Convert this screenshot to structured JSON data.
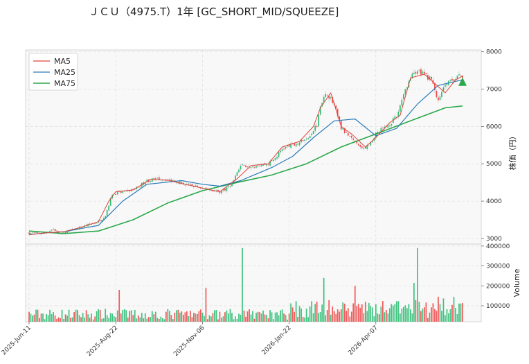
{
  "chart_data": {
    "type": "candlestick",
    "title": "ＪＣＵ（4975.T）1年 [GC_SHORT_MID/SQUEEZE]",
    "price_panel": {
      "ylabel": "株価（円）",
      "ylim": [
        2850,
        8050
      ],
      "yticks": [
        3000,
        4000,
        5000,
        6000,
        7000,
        8000
      ],
      "grid": true
    },
    "volume_panel": {
      "ylabel": "Volume",
      "ylim": [
        20000,
        410000
      ],
      "yticks": [
        100000,
        200000,
        300000,
        400000
      ],
      "grid": true
    },
    "x": {
      "tick_labels": [
        "2025-Jun-11",
        "2025-Aug-22",
        "2025-Nov-06",
        "2026-Jan-22",
        "2026-Apr-07"
      ],
      "tick_index": [
        0,
        50,
        100,
        150,
        200
      ],
      "n_sessions": 251
    },
    "legend": {
      "placement": "top-left",
      "entries": [
        {
          "name": "MA5",
          "color": "#e0443a"
        },
        {
          "name": "MA25",
          "color": "#2a7ab8"
        },
        {
          "name": "MA75",
          "color": "#2aa84a"
        }
      ]
    },
    "colors": {
      "up": "#2ebd74",
      "down": "#ee4a4a",
      "marker": "#2aa84a"
    },
    "price_path": [
      [
        0,
        3150
      ],
      [
        8,
        3130
      ],
      [
        14,
        3250
      ],
      [
        18,
        3120
      ],
      [
        30,
        3300
      ],
      [
        40,
        3450
      ],
      [
        44,
        3620
      ],
      [
        48,
        4200
      ],
      [
        56,
        4250
      ],
      [
        62,
        4350
      ],
      [
        68,
        4550
      ],
      [
        76,
        4600
      ],
      [
        84,
        4550
      ],
      [
        90,
        4450
      ],
      [
        100,
        4350
      ],
      [
        110,
        4250
      ],
      [
        116,
        4400
      ],
      [
        122,
        4950
      ],
      [
        130,
        4950
      ],
      [
        138,
        5000
      ],
      [
        142,
        5150
      ],
      [
        146,
        5400
      ],
      [
        154,
        5550
      ],
      [
        160,
        5650
      ],
      [
        166,
        6050
      ],
      [
        168,
        6600
      ],
      [
        172,
        6900
      ],
      [
        176,
        6550
      ],
      [
        180,
        5950
      ],
      [
        184,
        5750
      ],
      [
        188,
        5550
      ],
      [
        192,
        5400
      ],
      [
        196,
        5500
      ],
      [
        200,
        5800
      ],
      [
        206,
        6000
      ],
      [
        212,
        6250
      ],
      [
        216,
        6900
      ],
      [
        220,
        7300
      ],
      [
        224,
        7500
      ],
      [
        228,
        7400
      ],
      [
        232,
        7250
      ],
      [
        236,
        6650
      ],
      [
        240,
        7150
      ],
      [
        244,
        7300
      ],
      [
        250,
        7350
      ]
    ],
    "ma5": [
      [
        0,
        3100
      ],
      [
        10,
        3150
      ],
      [
        20,
        3180
      ],
      [
        30,
        3300
      ],
      [
        40,
        3450
      ],
      [
        46,
        4000
      ],
      [
        50,
        4250
      ],
      [
        60,
        4300
      ],
      [
        70,
        4580
      ],
      [
        80,
        4560
      ],
      [
        90,
        4450
      ],
      [
        100,
        4350
      ],
      [
        110,
        4250
      ],
      [
        120,
        4600
      ],
      [
        128,
        4950
      ],
      [
        138,
        5000
      ],
      [
        146,
        5450
      ],
      [
        156,
        5600
      ],
      [
        164,
        6000
      ],
      [
        168,
        6500
      ],
      [
        174,
        6900
      ],
      [
        180,
        6000
      ],
      [
        186,
        5800
      ],
      [
        194,
        5450
      ],
      [
        200,
        5700
      ],
      [
        208,
        6100
      ],
      [
        214,
        6300
      ],
      [
        220,
        7300
      ],
      [
        228,
        7400
      ],
      [
        234,
        7150
      ],
      [
        240,
        6900
      ],
      [
        246,
        7250
      ],
      [
        250,
        7350
      ]
    ],
    "ma25": [
      [
        0,
        3100
      ],
      [
        10,
        3150
      ],
      [
        20,
        3180
      ],
      [
        40,
        3350
      ],
      [
        54,
        4000
      ],
      [
        68,
        4450
      ],
      [
        88,
        4550
      ],
      [
        100,
        4450
      ],
      [
        110,
        4400
      ],
      [
        122,
        4550
      ],
      [
        140,
        4900
      ],
      [
        152,
        5200
      ],
      [
        164,
        5700
      ],
      [
        176,
        6150
      ],
      [
        188,
        6200
      ],
      [
        200,
        5750
      ],
      [
        212,
        5950
      ],
      [
        224,
        6600
      ],
      [
        236,
        7100
      ],
      [
        250,
        7250
      ]
    ],
    "ma75": [
      [
        0,
        3200
      ],
      [
        20,
        3130
      ],
      [
        40,
        3200
      ],
      [
        60,
        3500
      ],
      [
        80,
        3950
      ],
      [
        100,
        4280
      ],
      [
        120,
        4500
      ],
      [
        140,
        4700
      ],
      [
        160,
        5000
      ],
      [
        180,
        5450
      ],
      [
        200,
        5800
      ],
      [
        220,
        6150
      ],
      [
        240,
        6500
      ],
      [
        250,
        6550
      ]
    ],
    "volume_spikes": [
      [
        52,
        180000
      ],
      [
        102,
        190000
      ],
      [
        123,
        390000
      ],
      [
        170,
        240000
      ],
      [
        188,
        200000
      ],
      [
        222,
        215000
      ],
      [
        224,
        390000
      ],
      [
        236,
        145000
      ]
    ],
    "signal_marker": {
      "type": "triangle-up",
      "index": 250,
      "value": 7200
    }
  }
}
